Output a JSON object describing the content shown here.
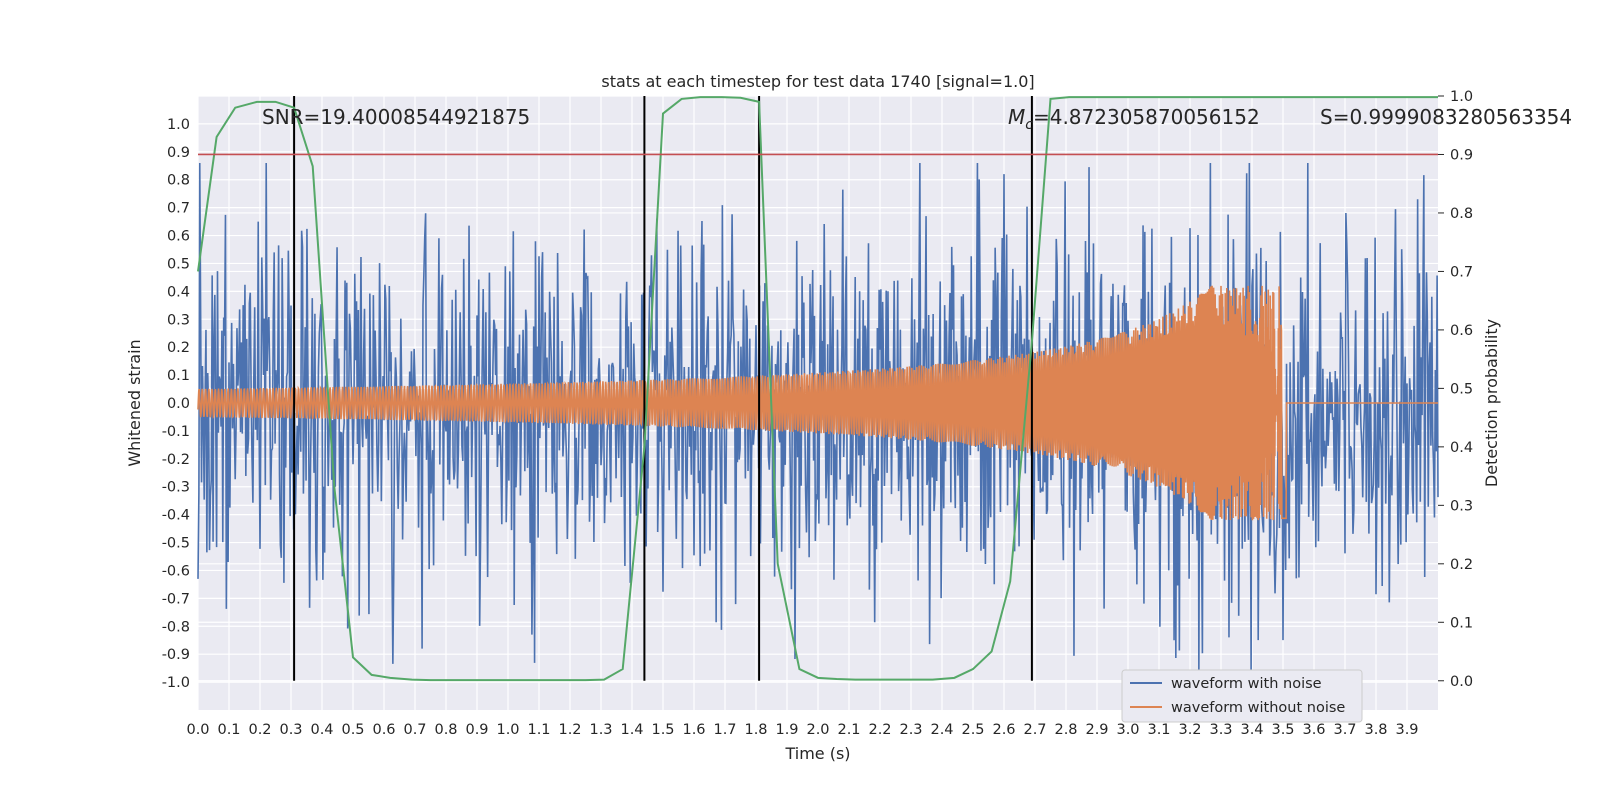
{
  "chart_data": {
    "type": "line",
    "title": "stats at each timestep for test data 1740 [signal=1.0]",
    "xlabel": "Time (s)",
    "ylabel": "Whitened strain",
    "y2label": "Detection probability",
    "xlim": [
      0.0,
      4.0
    ],
    "ylim": [
      -1.1,
      1.1
    ],
    "y2lim": [
      -0.05,
      1.0
    ],
    "x_ticks": [
      "0.0",
      "0.1",
      "0.2",
      "0.3",
      "0.4",
      "0.5",
      "0.6",
      "0.7",
      "0.8",
      "0.9",
      "1.0",
      "1.1",
      "1.2",
      "1.3",
      "1.4",
      "1.5",
      "1.6",
      "1.7",
      "1.8",
      "1.9",
      "2.0",
      "2.1",
      "2.2",
      "2.3",
      "2.4",
      "2.5",
      "2.6",
      "2.7",
      "2.8",
      "2.9",
      "3.0",
      "3.1",
      "3.2",
      "3.3",
      "3.4",
      "3.5",
      "3.6",
      "3.7",
      "3.8",
      "3.9"
    ],
    "y_ticks": [
      "1.0",
      "0.9",
      "0.8",
      "0.7",
      "0.6",
      "0.5",
      "0.4",
      "0.3",
      "0.2",
      "0.1",
      "0.0",
      "-0.1",
      "-0.2",
      "-0.3",
      "-0.4",
      "-0.5",
      "-0.6",
      "-0.7",
      "-0.8",
      "-0.9",
      "-1.0"
    ],
    "y2_ticks": [
      "1.0",
      "0.9",
      "0.8",
      "0.7",
      "0.6",
      "0.5",
      "0.4",
      "0.3",
      "0.2",
      "0.1",
      "0.0"
    ],
    "annotations": {
      "snr": "SNR=19.40008544921875",
      "mc_symbol": "M",
      "mc_sub": "c",
      "mc_value": "=4.872305870056152",
      "s": "S=0.9999083280563354"
    },
    "threshold": 0.9,
    "vertical_lines_x": [
      0.31,
      1.44,
      1.81,
      2.69
    ],
    "series": [
      {
        "name": "waveform with noise",
        "color": "#4c72b0",
        "noise_amplitude": 0.3,
        "range": [
          -0.97,
          0.86
        ]
      },
      {
        "name": "waveform without noise",
        "color": "#dd8452",
        "merger_time": 3.5,
        "amplitude_start": 0.05,
        "amplitude_peak": 0.42
      },
      {
        "name": "detection probability",
        "color": "#55a868",
        "x": [
          0.0,
          0.06,
          0.12,
          0.19,
          0.25,
          0.31,
          0.37,
          0.44,
          0.5,
          0.56,
          0.62,
          0.69,
          0.75,
          0.81,
          0.87,
          0.94,
          1.0,
          1.06,
          1.12,
          1.19,
          1.25,
          1.31,
          1.37,
          1.44,
          1.5,
          1.56,
          1.62,
          1.69,
          1.75,
          1.81,
          1.87,
          1.94,
          2.0,
          2.06,
          2.12,
          2.19,
          2.25,
          2.31,
          2.37,
          2.44,
          2.5,
          2.56,
          2.62,
          2.69,
          2.75,
          2.81,
          2.87,
          2.94,
          3.0,
          3.06,
          3.12,
          3.19,
          3.25,
          3.31,
          3.37,
          3.44,
          3.5,
          3.56,
          3.62,
          3.69,
          3.75,
          3.81,
          3.87,
          3.94,
          4.0
        ],
        "y": [
          0.7,
          0.93,
          0.98,
          0.99,
          0.99,
          0.98,
          0.88,
          0.33,
          0.04,
          0.01,
          0.005,
          0.002,
          0.001,
          0.001,
          0.001,
          0.001,
          0.001,
          0.001,
          0.001,
          0.001,
          0.001,
          0.002,
          0.02,
          0.4,
          0.97,
          0.995,
          0.998,
          0.998,
          0.997,
          0.99,
          0.2,
          0.02,
          0.005,
          0.003,
          0.002,
          0.002,
          0.002,
          0.002,
          0.002,
          0.005,
          0.02,
          0.05,
          0.17,
          0.58,
          0.995,
          0.998,
          0.998,
          0.998,
          0.998,
          0.998,
          0.998,
          0.998,
          0.998,
          0.998,
          0.998,
          0.998,
          0.998,
          0.998,
          0.998,
          0.998,
          0.998,
          0.998,
          0.998,
          0.998,
          0.998
        ]
      },
      {
        "name": "threshold",
        "color": "#c44e52"
      }
    ],
    "legend": {
      "position": "lower-right",
      "entries": [
        "waveform with noise",
        "waveform without noise"
      ]
    }
  }
}
